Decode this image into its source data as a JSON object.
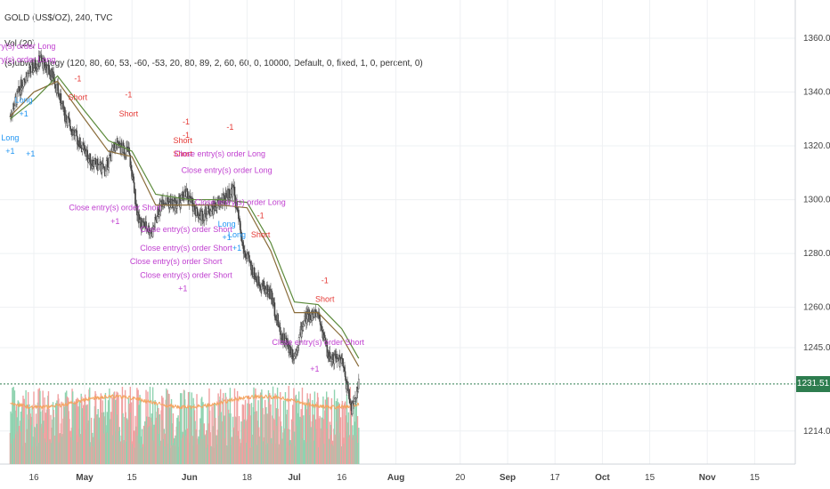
{
  "header": {
    "title": "GOLD (US$/OZ), 240, TVC",
    "vol_label": "Vol (20)",
    "strategy_label": "(s)ubwStrategy (120, 80, 60, 53, -60, -53, 20, 80, 89, 2, 60, 60, 0, 10000, Default, 0, fixed, 1, 0, percent, 0)"
  },
  "colors": {
    "up_candle": "#3a3a3a",
    "down_candle": "#3a3a3a",
    "ma_fast": "#8a6d3b",
    "ma_slow": "#5b8a3a",
    "vol_up": "#8fd3b0",
    "vol_down": "#f0a0a0",
    "vol_ma": "#f4a460",
    "long_signal": "#2196f3",
    "short_signal": "#e53935",
    "close_signal": "#c040d0",
    "last_price_bg": "#2e7d4f",
    "last_price_line": "#2e7d4f"
  },
  "chart_data": {
    "type": "candlestick",
    "title": "GOLD (US$/OZ), 240, TVC",
    "y_axis_ticks": [
      "1360.00",
      "1340.00",
      "1320.00",
      "1300.00",
      "1280.00",
      "1260.00",
      "1245.00",
      "1214.00"
    ],
    "y_tick_values": [
      1360,
      1340,
      1320,
      1300,
      1280,
      1260,
      1245,
      1214
    ],
    "x_axis_ticks": [
      "16",
      "May",
      "15",
      "Jun",
      "18",
      "Jul",
      "16",
      "Aug",
      "20",
      "Sep",
      "17",
      "Oct",
      "15",
      "Nov",
      "15"
    ],
    "x_tick_dates": [
      "2018-04-16",
      "2018-05-01",
      "2018-05-15",
      "2018-06-01",
      "2018-06-18",
      "2018-07-02",
      "2018-07-16",
      "2018-08-01",
      "2018-08-20",
      "2018-09-03",
      "2018-09-17",
      "2018-10-01",
      "2018-10-15",
      "2018-11-01",
      "2018-11-15"
    ],
    "last_price": "1231.51",
    "price_path": [
      {
        "date": "2018-04-09",
        "close": 1331
      },
      {
        "date": "2018-04-13",
        "close": 1345
      },
      {
        "date": "2018-04-18",
        "close": 1352
      },
      {
        "date": "2018-04-22",
        "close": 1345
      },
      {
        "date": "2018-04-25",
        "close": 1332
      },
      {
        "date": "2018-04-29",
        "close": 1322
      },
      {
        "date": "2018-05-03",
        "close": 1314
      },
      {
        "date": "2018-05-07",
        "close": 1311
      },
      {
        "date": "2018-05-10",
        "close": 1320
      },
      {
        "date": "2018-05-14",
        "close": 1318
      },
      {
        "date": "2018-05-17",
        "close": 1292
      },
      {
        "date": "2018-05-21",
        "close": 1288
      },
      {
        "date": "2018-05-24",
        "close": 1300
      },
      {
        "date": "2018-05-28",
        "close": 1298
      },
      {
        "date": "2018-05-31",
        "close": 1302
      },
      {
        "date": "2018-06-04",
        "close": 1294
      },
      {
        "date": "2018-06-07",
        "close": 1296
      },
      {
        "date": "2018-06-11",
        "close": 1300
      },
      {
        "date": "2018-06-14",
        "close": 1304
      },
      {
        "date": "2018-06-17",
        "close": 1281
      },
      {
        "date": "2018-06-21",
        "close": 1270
      },
      {
        "date": "2018-06-25",
        "close": 1265
      },
      {
        "date": "2018-06-28",
        "close": 1250
      },
      {
        "date": "2018-07-02",
        "close": 1242
      },
      {
        "date": "2018-07-05",
        "close": 1256
      },
      {
        "date": "2018-07-09",
        "close": 1258
      },
      {
        "date": "2018-07-12",
        "close": 1242
      },
      {
        "date": "2018-07-16",
        "close": 1240
      },
      {
        "date": "2018-07-19",
        "close": 1222
      },
      {
        "date": "2018-07-21",
        "close": 1231.51
      }
    ],
    "ma_fast": [
      {
        "date": "2018-04-09",
        "v": 1331
      },
      {
        "date": "2018-04-16",
        "v": 1340
      },
      {
        "date": "2018-04-23",
        "v": 1344
      },
      {
        "date": "2018-05-01",
        "v": 1330
      },
      {
        "date": "2018-05-08",
        "v": 1318
      },
      {
        "date": "2018-05-15",
        "v": 1316
      },
      {
        "date": "2018-05-22",
        "v": 1298
      },
      {
        "date": "2018-06-01",
        "v": 1298
      },
      {
        "date": "2018-06-10",
        "v": 1298
      },
      {
        "date": "2018-06-18",
        "v": 1297
      },
      {
        "date": "2018-06-25",
        "v": 1281
      },
      {
        "date": "2018-07-02",
        "v": 1258
      },
      {
        "date": "2018-07-09",
        "v": 1258
      },
      {
        "date": "2018-07-16",
        "v": 1249
      },
      {
        "date": "2018-07-21",
        "v": 1238
      }
    ],
    "ma_slow": [
      {
        "date": "2018-04-09",
        "v": 1330
      },
      {
        "date": "2018-04-16",
        "v": 1337
      },
      {
        "date": "2018-04-23",
        "v": 1346
      },
      {
        "date": "2018-05-01",
        "v": 1333
      },
      {
        "date": "2018-05-08",
        "v": 1322
      },
      {
        "date": "2018-05-15",
        "v": 1318
      },
      {
        "date": "2018-05-22",
        "v": 1302
      },
      {
        "date": "2018-06-01",
        "v": 1300
      },
      {
        "date": "2018-06-10",
        "v": 1300
      },
      {
        "date": "2018-06-18",
        "v": 1299
      },
      {
        "date": "2018-06-25",
        "v": 1284
      },
      {
        "date": "2018-07-02",
        "v": 1262
      },
      {
        "date": "2018-07-09",
        "v": 1261
      },
      {
        "date": "2018-07-16",
        "v": 1252
      },
      {
        "date": "2018-07-21",
        "v": 1241
      }
    ],
    "annotations": [
      {
        "text": "Close entry(s) order Long",
        "kind": "close",
        "date": "2018-04-09",
        "price": 1356
      },
      {
        "text": "Close entry(s) order Long",
        "kind": "close",
        "date": "2018-04-09",
        "price": 1351
      },
      {
        "text": "Long",
        "kind": "long",
        "date": "2018-04-09",
        "price": 1322
      },
      {
        "text": "+1",
        "kind": "long",
        "date": "2018-04-09",
        "price": 1317
      },
      {
        "text": "Long",
        "kind": "long",
        "date": "2018-04-13",
        "price": 1336
      },
      {
        "text": "+1",
        "kind": "long",
        "date": "2018-04-13",
        "price": 1331
      },
      {
        "text": "+1",
        "kind": "long",
        "date": "2018-04-15",
        "price": 1316
      },
      {
        "text": "-1",
        "kind": "short",
        "date": "2018-04-29",
        "price": 1344
      },
      {
        "text": "Short",
        "kind": "short",
        "date": "2018-04-29",
        "price": 1337
      },
      {
        "text": "-1",
        "kind": "short",
        "date": "2018-05-14",
        "price": 1338
      },
      {
        "text": "Short",
        "kind": "short",
        "date": "2018-05-14",
        "price": 1331
      },
      {
        "text": "Close entry(s) order Short",
        "kind": "close",
        "date": "2018-05-10",
        "price": 1296
      },
      {
        "text": "+1",
        "kind": "close",
        "date": "2018-05-10",
        "price": 1291
      },
      {
        "text": "-1",
        "kind": "short",
        "date": "2018-05-31",
        "price": 1328
      },
      {
        "text": "-1",
        "kind": "short",
        "date": "2018-05-31",
        "price": 1323
      },
      {
        "text": "Short",
        "kind": "short",
        "date": "2018-05-30",
        "price": 1321
      },
      {
        "text": "Short",
        "kind": "short",
        "date": "2018-05-30",
        "price": 1316
      },
      {
        "text": "Close entry(s) order Long",
        "kind": "close",
        "date": "2018-06-10",
        "price": 1316
      },
      {
        "text": "Close entry(s) order Long",
        "kind": "close",
        "date": "2018-06-12",
        "price": 1310
      },
      {
        "text": "Close entry(s) order Long",
        "kind": "close",
        "date": "2018-06-16",
        "price": 1298
      },
      {
        "text": "-1",
        "kind": "short",
        "date": "2018-06-13",
        "price": 1326
      },
      {
        "text": "Close entry(s) order Short",
        "kind": "close",
        "date": "2018-05-31",
        "price": 1288
      },
      {
        "text": "Close entry(s) order Short",
        "kind": "close",
        "date": "2018-05-31",
        "price": 1281
      },
      {
        "text": "Close entry(s) order Short",
        "kind": "close",
        "date": "2018-05-28",
        "price": 1276
      },
      {
        "text": "Close entry(s) order Short",
        "kind": "close",
        "date": "2018-05-31",
        "price": 1271
      },
      {
        "text": "+1",
        "kind": "close",
        "date": "2018-05-30",
        "price": 1266
      },
      {
        "text": "Long",
        "kind": "long",
        "date": "2018-06-12",
        "price": 1290
      },
      {
        "text": "+1",
        "kind": "long",
        "date": "2018-06-12",
        "price": 1285
      },
      {
        "text": "Long",
        "kind": "long",
        "date": "2018-06-15",
        "price": 1286
      },
      {
        "text": "+1",
        "kind": "long",
        "date": "2018-06-15",
        "price": 1281
      },
      {
        "text": "-1",
        "kind": "short",
        "date": "2018-06-22",
        "price": 1293
      },
      {
        "text": "Short",
        "kind": "short",
        "date": "2018-06-22",
        "price": 1286
      },
      {
        "text": "-1",
        "kind": "short",
        "date": "2018-07-11",
        "price": 1269
      },
      {
        "text": "Short",
        "kind": "short",
        "date": "2018-07-11",
        "price": 1262
      },
      {
        "text": "Close entry(s) order Short",
        "kind": "close",
        "date": "2018-07-09",
        "price": 1246
      },
      {
        "text": "+1",
        "kind": "close",
        "date": "2018-07-08",
        "price": 1236
      }
    ],
    "volume": {
      "note": "histogram per 4h bar, red on down bars, green on up bars",
      "ma_label": "Vol (20)"
    },
    "grid": true,
    "crosshair_line_price": "1231.51"
  }
}
